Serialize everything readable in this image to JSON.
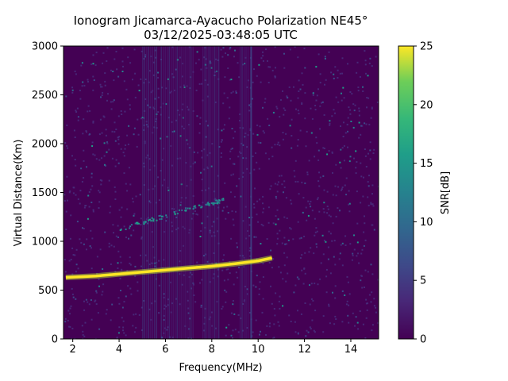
{
  "chart_data": {
    "type": "heatmap",
    "title": "Ionogram Jicamarca-Ayacucho Polarization NE45°",
    "subtitle": "03/12/2025-03:48:05 UTC",
    "xlabel": "Frequency(MHz)",
    "ylabel": "Virtual Distance(Km)",
    "xlim": [
      1.6,
      15.2
    ],
    "ylim": [
      0,
      3000
    ],
    "xticks": [
      2,
      4,
      6,
      8,
      10,
      12,
      14
    ],
    "yticks": [
      0,
      500,
      1000,
      1500,
      2000,
      2500,
      3000
    ],
    "colorbar": {
      "label": "SNR[dB]",
      "range": [
        0,
        25
      ],
      "ticks": [
        0,
        5,
        10,
        15,
        20,
        25
      ],
      "colormap": "viridis"
    },
    "grid": false,
    "traces": [
      {
        "desc": "strong F-layer echo",
        "snr": 25,
        "x": [
          1.7,
          3,
          4,
          5,
          6,
          7,
          8,
          9,
          10,
          10.6
        ],
        "y": [
          630,
          645,
          665,
          685,
          705,
          725,
          745,
          770,
          800,
          830
        ]
      },
      {
        "desc": "weak second-hop echo",
        "snr": 14,
        "x": [
          4,
          5,
          6,
          7,
          8,
          8.5
        ],
        "y": [
          1130,
          1200,
          1270,
          1340,
          1400,
          1430
        ]
      }
    ],
    "noisy_bands_mhz": [
      [
        5.0,
        5.6
      ],
      [
        5.8,
        7.2
      ],
      [
        7.6,
        8.3
      ],
      [
        9.2,
        9.6
      ]
    ],
    "interference_line_mhz": 9.7
  }
}
